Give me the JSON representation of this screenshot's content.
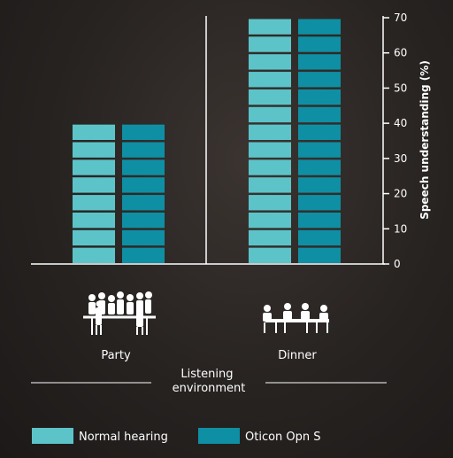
{
  "chart_data": {
    "type": "bar",
    "categories": [
      "Party",
      "Dinner"
    ],
    "series": [
      {
        "name": "Normal hearing",
        "values": [
          40,
          70
        ]
      },
      {
        "name": "Oticon Opn S",
        "values": [
          40,
          70
        ]
      }
    ],
    "ylabel": "Speech understanding (%)",
    "xlabel": "Listening environment",
    "ylim": [
      0,
      70
    ],
    "yticks": [
      0,
      10,
      20,
      30,
      40,
      50,
      60,
      70
    ],
    "legend_position": "bottom",
    "grid": false
  },
  "colors": {
    "normal_hearing": "#5cc4c9",
    "oticon": "#0f8fa3",
    "axis": "#ffffff"
  },
  "icons": [
    "party-icon",
    "dinner-icon"
  ]
}
